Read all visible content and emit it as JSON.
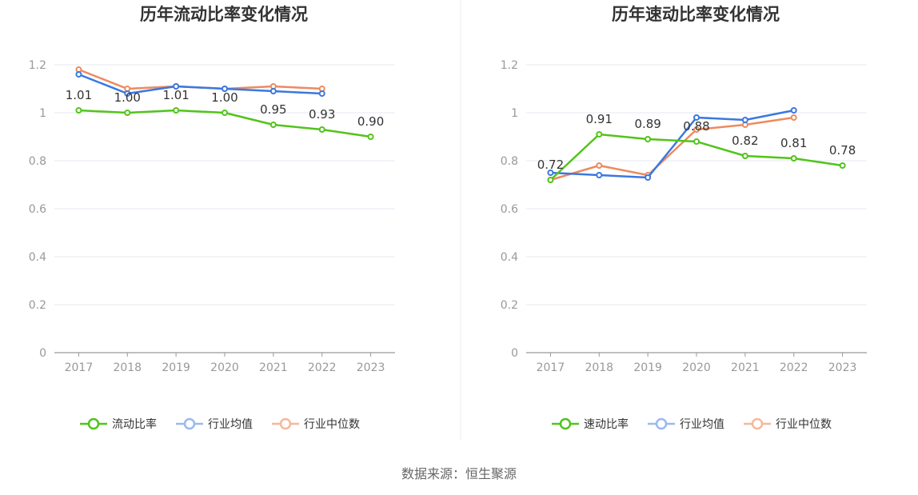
{
  "colors": {
    "primary": "#52c41a",
    "industry_avg": "#3a78e0",
    "industry_median": "#ee8a5f",
    "legend_avg_faded": "#9ab9ee",
    "legend_median_faded": "#f5b89a"
  },
  "source": "数据来源：恒生聚源",
  "chart_data": [
    {
      "type": "line",
      "title": "历年流动比率变化情况",
      "categories": [
        "2017",
        "2018",
        "2019",
        "2020",
        "2021",
        "2022",
        "2023"
      ],
      "ylim": [
        0,
        1.2
      ],
      "yticks": [
        "0",
        "0.2",
        "0.4",
        "0.6",
        "0.8",
        "1",
        "1.2"
      ],
      "grid": true,
      "legend_position": "bottom",
      "series": [
        {
          "name": "流动比率",
          "values": [
            1.01,
            1.0,
            1.01,
            1.0,
            0.95,
            0.93,
            0.9
          ],
          "labels": [
            "1.01",
            "1.00",
            "1.01",
            "1.00",
            "0.95",
            "0.93",
            "0.90"
          ]
        },
        {
          "name": "行业均值",
          "values": [
            1.16,
            1.08,
            1.11,
            1.1,
            1.09,
            1.08,
            null
          ]
        },
        {
          "name": "行业中位数",
          "values": [
            1.18,
            1.1,
            1.11,
            1.1,
            1.11,
            1.1,
            null
          ]
        }
      ]
    },
    {
      "type": "line",
      "title": "历年速动比率变化情况",
      "categories": [
        "2017",
        "2018",
        "2019",
        "2020",
        "2021",
        "2022",
        "2023"
      ],
      "ylim": [
        0,
        1.2
      ],
      "yticks": [
        "0",
        "0.2",
        "0.4",
        "0.6",
        "0.8",
        "1",
        "1.2"
      ],
      "grid": true,
      "legend_position": "bottom",
      "series": [
        {
          "name": "速动比率",
          "values": [
            0.72,
            0.91,
            0.89,
            0.88,
            0.82,
            0.81,
            0.78
          ],
          "labels": [
            "0.72",
            "0.91",
            "0.89",
            "0.88",
            "0.82",
            "0.81",
            "0.78"
          ]
        },
        {
          "name": "行业均值",
          "values": [
            0.75,
            0.74,
            0.73,
            0.98,
            0.97,
            1.01,
            null
          ]
        },
        {
          "name": "行业中位数",
          "values": [
            0.72,
            0.78,
            0.74,
            0.93,
            0.95,
            0.98,
            null
          ]
        }
      ]
    }
  ]
}
